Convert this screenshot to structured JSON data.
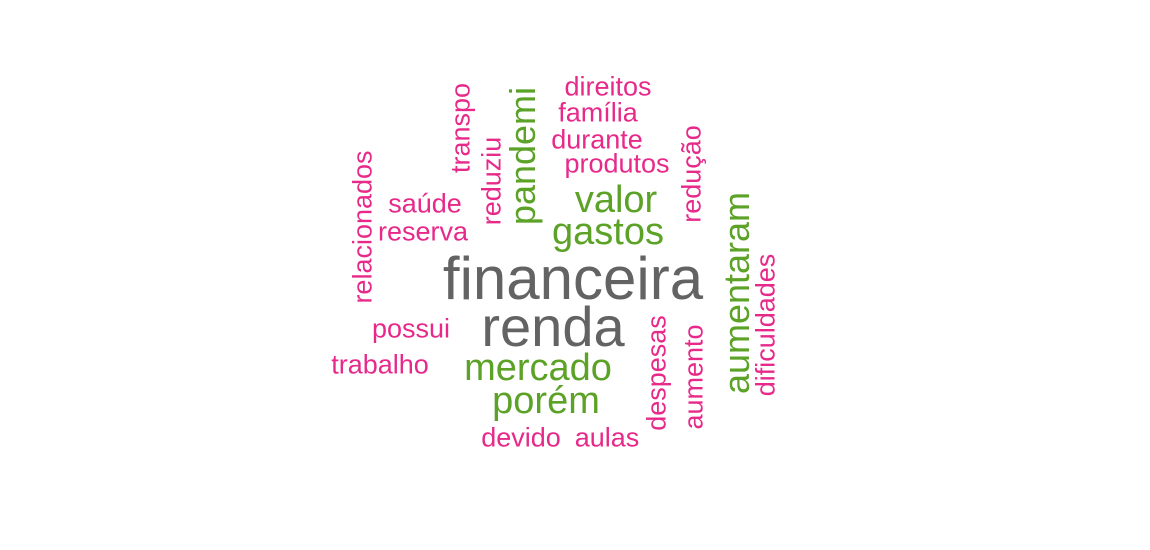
{
  "colors": {
    "level1": "#636363",
    "level2": "#5ba227",
    "level3": "#e7298a"
  },
  "words": [
    {
      "text": "financeira",
      "level": 1
    },
    {
      "text": "renda",
      "level": 1
    },
    {
      "text": "valor",
      "level": 2
    },
    {
      "text": "gastos",
      "level": 2
    },
    {
      "text": "mercado",
      "level": 2
    },
    {
      "text": "porém",
      "level": 2
    },
    {
      "text": "pandemi",
      "level": 2
    },
    {
      "text": "aumentaram",
      "level": 2
    },
    {
      "text": "direitos",
      "level": 3
    },
    {
      "text": "família",
      "level": 3
    },
    {
      "text": "durante",
      "level": 3
    },
    {
      "text": "produtos",
      "level": 3
    },
    {
      "text": "saúde",
      "level": 3
    },
    {
      "text": "reserva",
      "level": 3
    },
    {
      "text": "possui",
      "level": 3
    },
    {
      "text": "trabalho",
      "level": 3
    },
    {
      "text": "devido",
      "level": 3
    },
    {
      "text": "aulas",
      "level": 3
    },
    {
      "text": "relacionados",
      "level": 3
    },
    {
      "text": "transpo",
      "level": 3
    },
    {
      "text": "reduziu",
      "level": 3
    },
    {
      "text": "redução",
      "level": 3
    },
    {
      "text": "despesas",
      "level": 3
    },
    {
      "text": "aumento",
      "level": 3
    },
    {
      "text": "dificuldades",
      "level": 3
    }
  ]
}
